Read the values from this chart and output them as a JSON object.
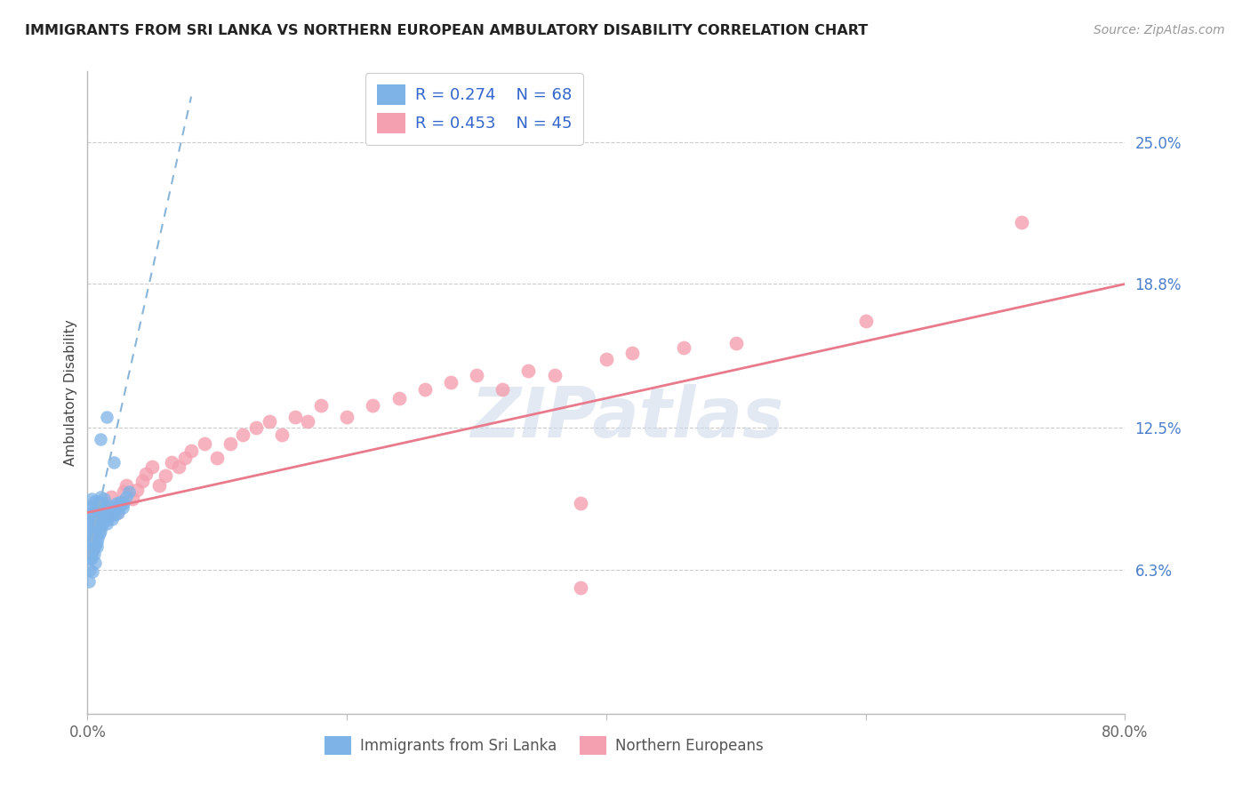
{
  "title": "IMMIGRANTS FROM SRI LANKA VS NORTHERN EUROPEAN AMBULATORY DISABILITY CORRELATION CHART",
  "source": "Source: ZipAtlas.com",
  "ylabel": "Ambulatory Disability",
  "xlim": [
    0,
    0.8
  ],
  "ylim": [
    0,
    0.281
  ],
  "yticks": [
    0.0,
    0.063,
    0.125,
    0.188,
    0.25
  ],
  "ytick_labels": [
    "",
    "6.3%",
    "12.5%",
    "18.8%",
    "25.0%"
  ],
  "xticks": [
    0.0,
    0.2,
    0.4,
    0.6,
    0.8
  ],
  "xtick_labels": [
    "0.0%",
    "",
    "",
    "",
    "80.0%"
  ],
  "legend_r1": "R = 0.274",
  "legend_n1": "N = 68",
  "legend_r2": "R = 0.453",
  "legend_n2": "N = 45",
  "series1_color": "#7eb3e8",
  "series2_color": "#f4a0b0",
  "line1_color": "#8ab4d8",
  "line2_color": "#e87a8c",
  "watermark": "ZIPatlas",
  "background_color": "#ffffff",
  "sri_lanka_x": [
    0.001,
    0.001,
    0.001,
    0.002,
    0.002,
    0.002,
    0.002,
    0.003,
    0.003,
    0.003,
    0.003,
    0.003,
    0.004,
    0.004,
    0.004,
    0.004,
    0.005,
    0.005,
    0.005,
    0.005,
    0.006,
    0.006,
    0.006,
    0.007,
    0.007,
    0.007,
    0.008,
    0.008,
    0.008,
    0.009,
    0.009,
    0.01,
    0.01,
    0.01,
    0.011,
    0.011,
    0.012,
    0.012,
    0.013,
    0.013,
    0.014,
    0.015,
    0.015,
    0.016,
    0.017,
    0.018,
    0.019,
    0.02,
    0.021,
    0.022,
    0.023,
    0.024,
    0.025,
    0.026,
    0.027,
    0.028,
    0.03,
    0.032,
    0.001,
    0.002,
    0.003,
    0.004,
    0.005,
    0.006,
    0.007,
    0.01,
    0.015,
    0.02
  ],
  "sri_lanka_y": [
    0.072,
    0.078,
    0.084,
    0.068,
    0.075,
    0.082,
    0.09,
    0.07,
    0.076,
    0.083,
    0.088,
    0.094,
    0.071,
    0.079,
    0.085,
    0.091,
    0.073,
    0.08,
    0.087,
    0.093,
    0.074,
    0.081,
    0.089,
    0.075,
    0.083,
    0.091,
    0.077,
    0.085,
    0.093,
    0.079,
    0.087,
    0.08,
    0.088,
    0.095,
    0.082,
    0.09,
    0.084,
    0.092,
    0.086,
    0.094,
    0.088,
    0.083,
    0.09,
    0.086,
    0.088,
    0.091,
    0.085,
    0.089,
    0.087,
    0.092,
    0.09,
    0.088,
    0.091,
    0.093,
    0.09,
    0.092,
    0.095,
    0.097,
    0.058,
    0.063,
    0.068,
    0.062,
    0.07,
    0.066,
    0.073,
    0.12,
    0.13,
    0.11
  ],
  "northern_eu_x": [
    0.01,
    0.015,
    0.018,
    0.022,
    0.025,
    0.028,
    0.03,
    0.035,
    0.038,
    0.042,
    0.045,
    0.05,
    0.055,
    0.06,
    0.065,
    0.07,
    0.075,
    0.08,
    0.09,
    0.1,
    0.11,
    0.12,
    0.13,
    0.14,
    0.15,
    0.16,
    0.17,
    0.18,
    0.2,
    0.22,
    0.24,
    0.26,
    0.28,
    0.3,
    0.32,
    0.34,
    0.36,
    0.38,
    0.4,
    0.42,
    0.46,
    0.5,
    0.6,
    0.72,
    0.38
  ],
  "northern_eu_y": [
    0.09,
    0.085,
    0.095,
    0.088,
    0.092,
    0.097,
    0.1,
    0.094,
    0.098,
    0.102,
    0.105,
    0.108,
    0.1,
    0.104,
    0.11,
    0.108,
    0.112,
    0.115,
    0.118,
    0.112,
    0.118,
    0.122,
    0.125,
    0.128,
    0.122,
    0.13,
    0.128,
    0.135,
    0.13,
    0.135,
    0.138,
    0.142,
    0.145,
    0.148,
    0.142,
    0.15,
    0.148,
    0.092,
    0.155,
    0.158,
    0.16,
    0.162,
    0.172,
    0.215,
    0.055
  ],
  "line1_x_start": 0.0,
  "line1_x_end": 0.08,
  "line1_y_start": 0.068,
  "line1_y_end": 0.27,
  "line2_x_start": 0.0,
  "line2_x_end": 0.8,
  "line2_y_start": 0.088,
  "line2_y_end": 0.188
}
